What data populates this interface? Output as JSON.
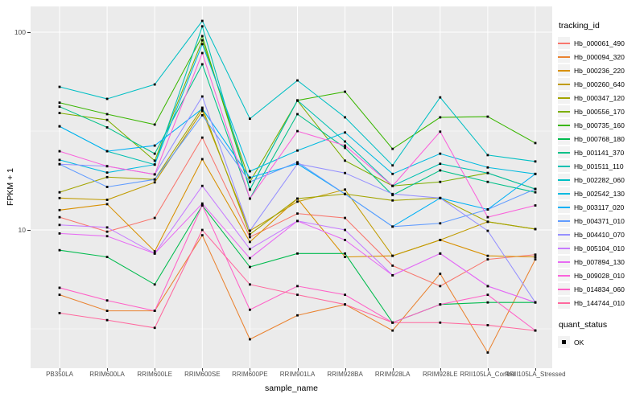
{
  "axes": {
    "y_label": "FPKM + 1",
    "x_label": "sample_name",
    "y_tick_labels": [
      "100",
      "10"
    ]
  },
  "legend": {
    "tracking_title": "tracking_id",
    "quant_title": "quant_status",
    "quant_label": "OK",
    "quant_marker": "black-square"
  },
  "theme": {
    "panel_bg": "#EBEBEB",
    "grid_color": "#FFFFFF",
    "tick_text_color": "#4D4D4D",
    "tick_mark_color": "#333333",
    "marker_color": "#000000"
  },
  "chart_data": {
    "type": "line",
    "title": "",
    "xlabel": "sample_name",
    "ylabel": "FPKM + 1",
    "y_scale": "log10",
    "ylim": [
      2.0,
      135
    ],
    "y_gridlines": [
      10,
      100
    ],
    "y_minor_gridlines": [
      3.162,
      31.62
    ],
    "grid": true,
    "legend_position": "right",
    "point_marker": {
      "shape": "square",
      "color": "#000000",
      "meaning": "quant_status OK"
    },
    "x_categories": [
      "PB350LA",
      "RRIM600LA",
      "RRIM600LE",
      "RRIM600SE",
      "RRIM600PE",
      "RRIM901LA",
      "RRIM928BA",
      "RRIM928LA",
      "RRIM928LE",
      "RRII105LA_Control",
      "RRII105LA_Stressed"
    ],
    "series": [
      {
        "name": "Hb_000061_490",
        "color": "#F8766D",
        "values": [
          11.6,
          9.8,
          11.5,
          29.3,
          9.2,
          12.1,
          11.5,
          6.6,
          5.2,
          7.1,
          7.5
        ]
      },
      {
        "name": "Hb_000094_320",
        "color": "#EA8331",
        "values": [
          4.7,
          3.9,
          3.9,
          9.4,
          2.8,
          3.7,
          4.2,
          3.1,
          6.0,
          2.4,
          7.1
        ]
      },
      {
        "name": "Hb_000236_220",
        "color": "#D89000",
        "values": [
          12.6,
          13.5,
          7.8,
          22.8,
          8.7,
          14.4,
          7.3,
          7.4,
          8.9,
          7.4,
          7.3
        ]
      },
      {
        "name": "Hb_000260_640",
        "color": "#C09B00",
        "values": [
          14.5,
          14.2,
          17.4,
          40.0,
          9.9,
          13.9,
          16.0,
          7.4,
          8.9,
          11.0,
          10.1
        ]
      },
      {
        "name": "Hb_000347_120",
        "color": "#A3A500",
        "values": [
          15.5,
          18.5,
          18.0,
          41.5,
          9.5,
          14.4,
          15.2,
          14.1,
          14.5,
          11.0,
          10.1
        ]
      },
      {
        "name": "Hb_000556_170",
        "color": "#7CAE00",
        "values": [
          39.0,
          36.0,
          22.4,
          91.0,
          17.5,
          45.0,
          22.4,
          16.7,
          17.5,
          19.4,
          16.1
        ]
      },
      {
        "name": "Hb_000735_160",
        "color": "#39B600",
        "values": [
          44.0,
          38.5,
          34.1,
          95.5,
          16.0,
          45.2,
          50.0,
          25.7,
          37.1,
          37.4,
          27.5
        ]
      },
      {
        "name": "Hb_000768_180",
        "color": "#00BB4E",
        "values": [
          7.9,
          7.3,
          5.3,
          13.3,
          6.5,
          7.6,
          7.6,
          3.4,
          4.2,
          4.3,
          4.3
        ]
      },
      {
        "name": "Hb_001141_370",
        "color": "#00C087",
        "values": [
          42.0,
          33.0,
          24.3,
          68.8,
          14.4,
          38.5,
          26.0,
          15.0,
          20.0,
          17.5,
          15.5
        ]
      },
      {
        "name": "Hb_001511_110",
        "color": "#00C0B2",
        "values": [
          33.4,
          25.0,
          21.4,
          107.0,
          16.0,
          45.2,
          28.0,
          16.7,
          21.6,
          19.4,
          16.1
        ]
      },
      {
        "name": "Hb_002282_060",
        "color": "#00BFC4",
        "values": [
          52.9,
          46.0,
          54.4,
          114.0,
          36.5,
          57.0,
          37.1,
          21.2,
          46.8,
          23.9,
          22.2
        ]
      },
      {
        "name": "Hb_002542_130",
        "color": "#00BAE0",
        "values": [
          22.6,
          19.5,
          21.4,
          87.0,
          19.8,
          25.2,
          31.1,
          19.2,
          24.3,
          20.7,
          19.2
        ]
      },
      {
        "name": "Hb_003117_020",
        "color": "#00B0F6",
        "values": [
          33.4,
          25.0,
          26.7,
          41.0,
          18.4,
          21.6,
          15.2,
          10.4,
          14.5,
          12.7,
          19.2
        ]
      },
      {
        "name": "Hb_004371_010",
        "color": "#619CFF",
        "values": [
          21.5,
          16.5,
          18.0,
          38.0,
          17.5,
          22.0,
          15.2,
          10.4,
          10.8,
          12.7,
          16.1
        ]
      },
      {
        "name": "Hb_004410_070",
        "color": "#9590FF",
        "values": [
          21.5,
          21.0,
          19.1,
          47.3,
          9.9,
          21.6,
          19.4,
          15.2,
          14.5,
          9.9,
          4.3
        ]
      },
      {
        "name": "Hb_005104_010",
        "color": "#C77CFF",
        "values": [
          10.6,
          10.3,
          7.6,
          16.7,
          8.0,
          11.1,
          10.0,
          5.9,
          7.6,
          5.2,
          4.3
        ]
      },
      {
        "name": "Hb_007894_130",
        "color": "#E76BF3",
        "values": [
          9.6,
          9.3,
          7.6,
          13.6,
          7.2,
          11.1,
          8.9,
          5.9,
          7.6,
          5.2,
          4.3
        ]
      },
      {
        "name": "Hb_009028_010",
        "color": "#FA62DB",
        "values": [
          25.0,
          21.0,
          19.1,
          78.4,
          14.4,
          31.6,
          26.7,
          16.7,
          31.4,
          11.6,
          13.3
        ]
      },
      {
        "name": "Hb_014834_060",
        "color": "#FF61C7",
        "values": [
          5.1,
          4.4,
          3.9,
          13.3,
          3.95,
          5.2,
          4.7,
          3.4,
          4.2,
          4.7,
          3.1
        ]
      },
      {
        "name": "Hb_144744_010",
        "color": "#FF689E",
        "values": [
          3.8,
          3.5,
          3.2,
          10.0,
          5.3,
          4.7,
          4.2,
          3.4,
          3.4,
          3.3,
          3.1
        ]
      }
    ]
  }
}
